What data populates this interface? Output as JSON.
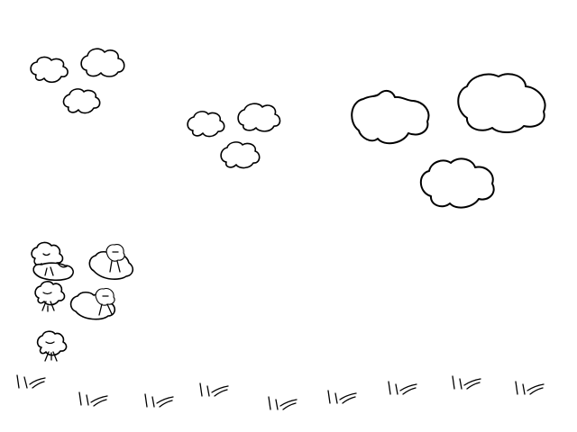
{
  "scene": {
    "background_color": "#ffffff",
    "line_color": "#000000",
    "clouds": [
      {
        "name": "cloud-small-1",
        "icon": "cloud-icon"
      },
      {
        "name": "cloud-small-2",
        "icon": "cloud-icon"
      },
      {
        "name": "cloud-small-3",
        "icon": "cloud-icon"
      },
      {
        "name": "cloud-small-4",
        "icon": "cloud-icon"
      },
      {
        "name": "cloud-small-5",
        "icon": "cloud-icon"
      },
      {
        "name": "cloud-small-6",
        "icon": "cloud-icon"
      },
      {
        "name": "cloud-large-1",
        "icon": "cloud-icon"
      },
      {
        "name": "cloud-large-2",
        "icon": "cloud-icon"
      },
      {
        "name": "cloud-large-3",
        "icon": "cloud-icon"
      }
    ],
    "sprites": [
      {
        "name": "character-sprite-1",
        "icon": "cloud-character-icon"
      },
      {
        "name": "character-sprite-2",
        "icon": "cloud-character-icon"
      },
      {
        "name": "character-sprite-3",
        "icon": "cloud-character-icon"
      },
      {
        "name": "character-sprite-4",
        "icon": "cloud-character-icon"
      },
      {
        "name": "character-sprite-5",
        "icon": "cloud-character-icon"
      },
      {
        "name": "character-sprite-6",
        "icon": "cloud-character-icon"
      }
    ],
    "grass_tufts": 9
  }
}
